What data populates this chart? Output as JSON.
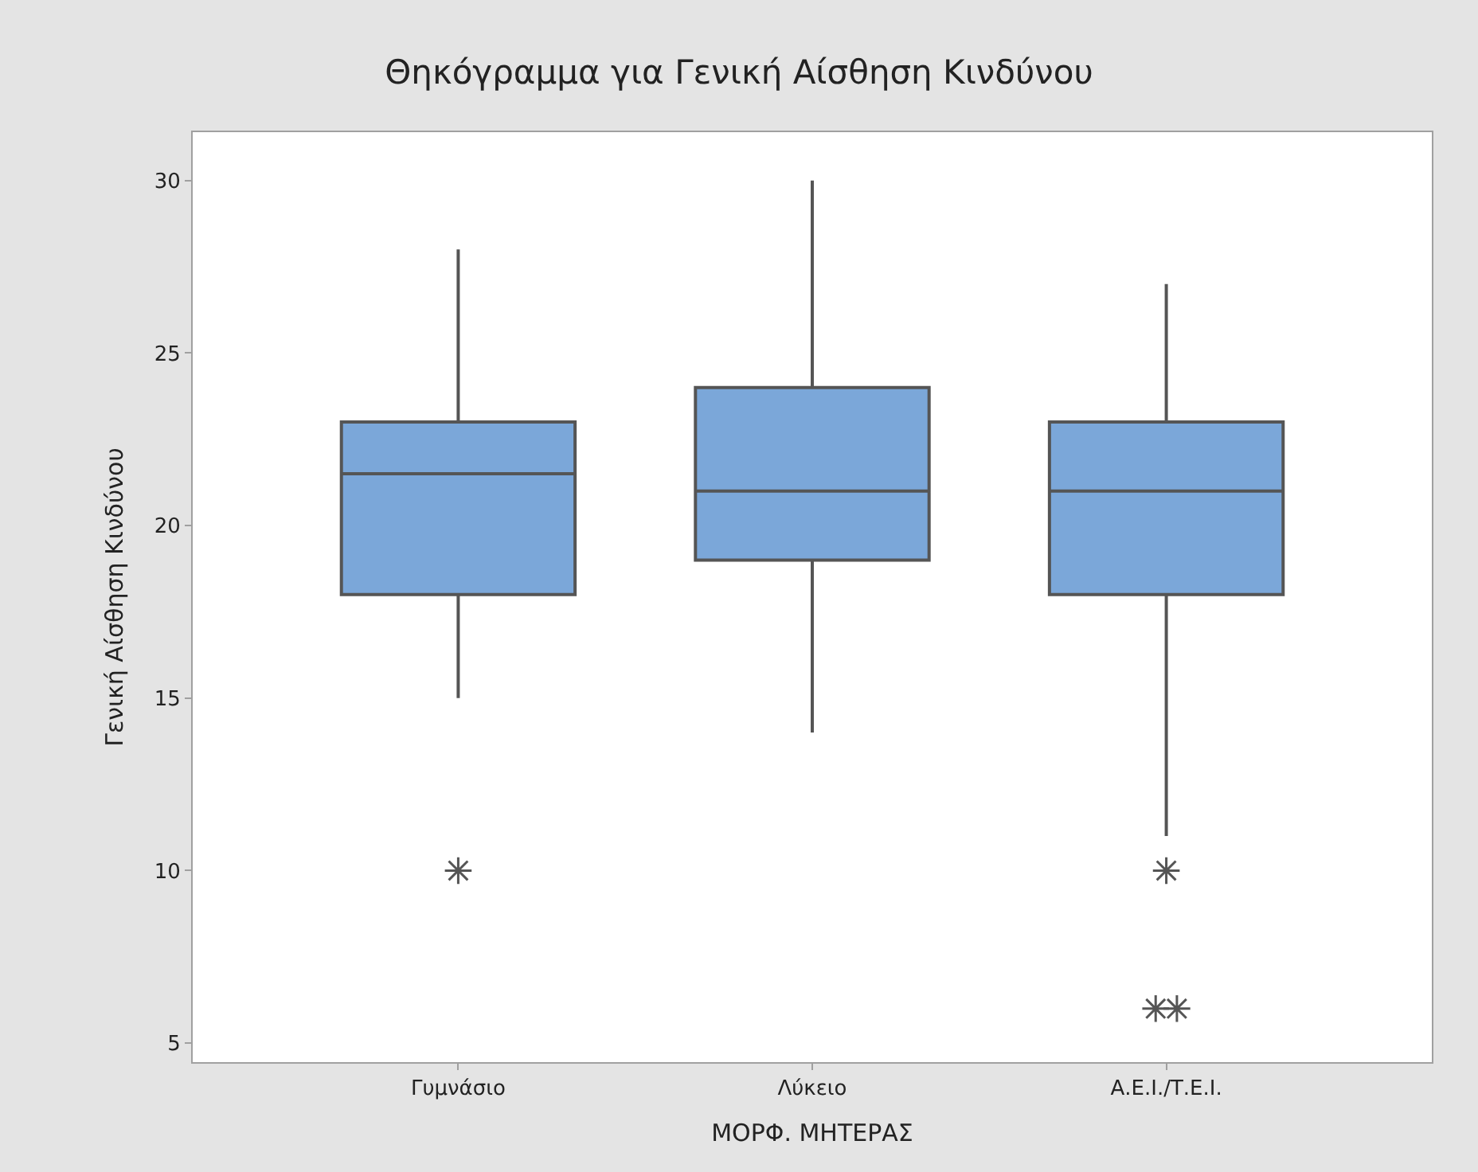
{
  "chart_data": {
    "type": "box",
    "title": "Θηκόγραμμα για Γενική Αίσθηση Κινδύνου",
    "xlabel": "ΜΟΡΦ. ΜΗΤΕΡΑΣ",
    "ylabel": "Γενική Αίσθηση Κινδύνου",
    "categories": [
      "Γυμνάσιο",
      "Λύκειο",
      "Α.Ε.Ι./Τ.Ε.Ι."
    ],
    "color": "#7ba7d9",
    "boxes": [
      {
        "low": 15,
        "q1": 18,
        "median": 21.5,
        "q3": 23,
        "high": 28,
        "outliers": [
          10
        ]
      },
      {
        "low": 14,
        "q1": 19,
        "median": 21,
        "q3": 24,
        "high": 30
      },
      {
        "low": 11,
        "q1": 18,
        "median": 21,
        "q3": 23,
        "high": 27,
        "outliers": [
          10,
          6,
          6
        ]
      }
    ],
    "ylim": [
      4.45,
      31.4
    ],
    "yticks": [
      5,
      10,
      15,
      20,
      25,
      30
    ]
  }
}
